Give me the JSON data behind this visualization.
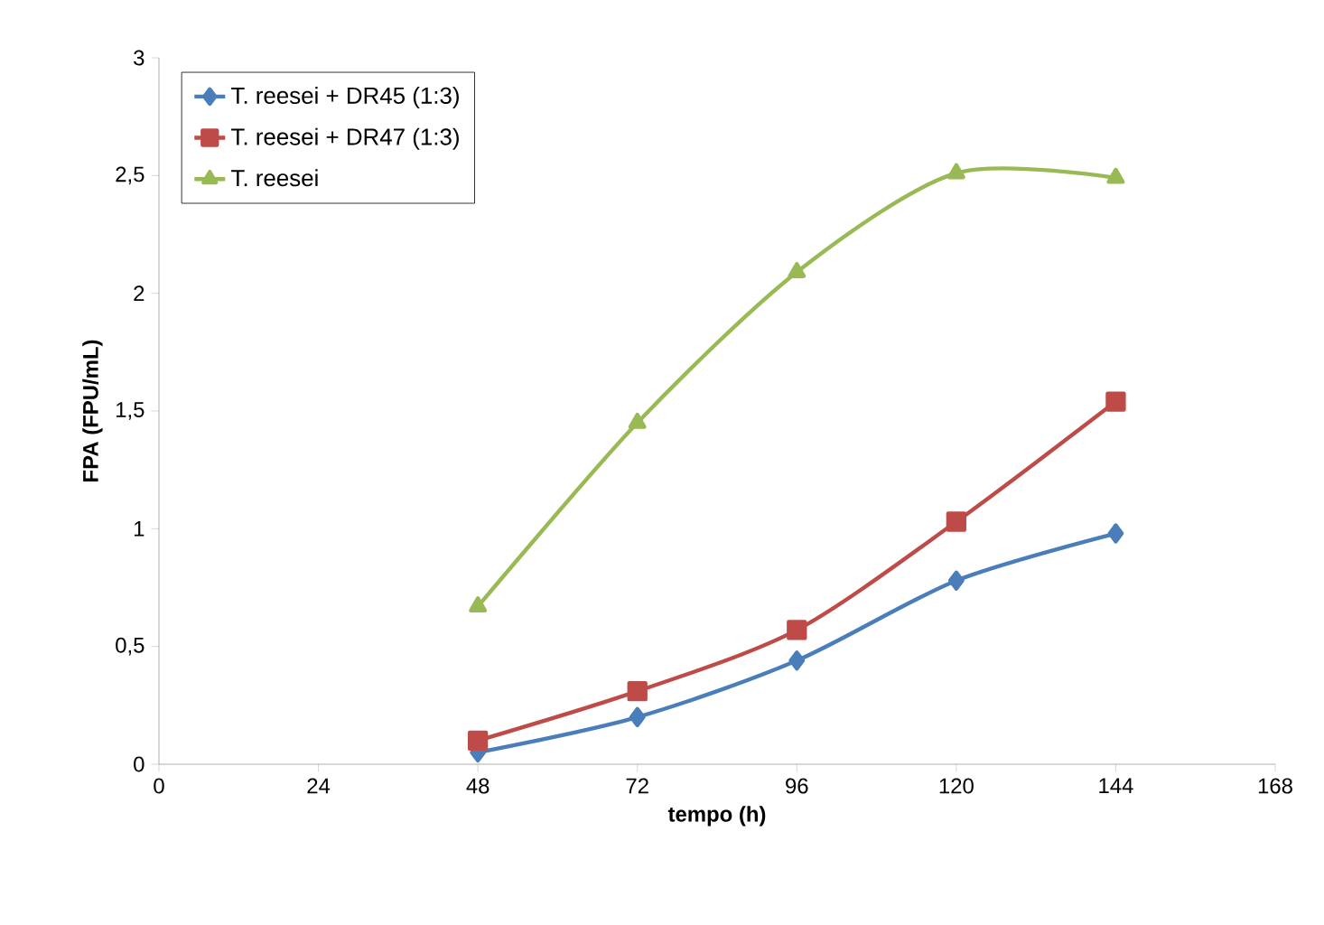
{
  "chart_data": {
    "type": "line",
    "xlabel": "tempo (h)",
    "ylabel": "FPA (FPU/mL)",
    "xlim": [
      0,
      168
    ],
    "xticks": [
      0,
      24,
      48,
      72,
      96,
      120,
      144,
      168
    ],
    "ylim": [
      0,
      3
    ],
    "yticks": [
      0,
      {
        "value": 0.5,
        "label": "0,5"
      },
      1,
      {
        "value": 1.5,
        "label": "1,5"
      },
      2,
      {
        "value": 2.5,
        "label": "2,5"
      },
      3
    ],
    "x": [
      48,
      72,
      96,
      120,
      144
    ],
    "grid": false,
    "legend": "top left",
    "line_style": "solid",
    "series": [
      {
        "name": "T. reesei + DR45 (1:3)",
        "color": "#4a7ebb",
        "marker": "diamond",
        "values": [
          0.05,
          0.2,
          0.44,
          0.78,
          0.98
        ]
      },
      {
        "name": "T. reesei + DR47 (1:3)",
        "color": "#be4b48",
        "marker": "square",
        "values": [
          0.1,
          0.31,
          0.57,
          1.03,
          1.54
        ]
      },
      {
        "name": "T. reesei",
        "color": "#98b954",
        "marker": "triangle",
        "values": [
          0.67,
          1.45,
          2.09,
          2.51,
          2.49
        ]
      }
    ]
  }
}
